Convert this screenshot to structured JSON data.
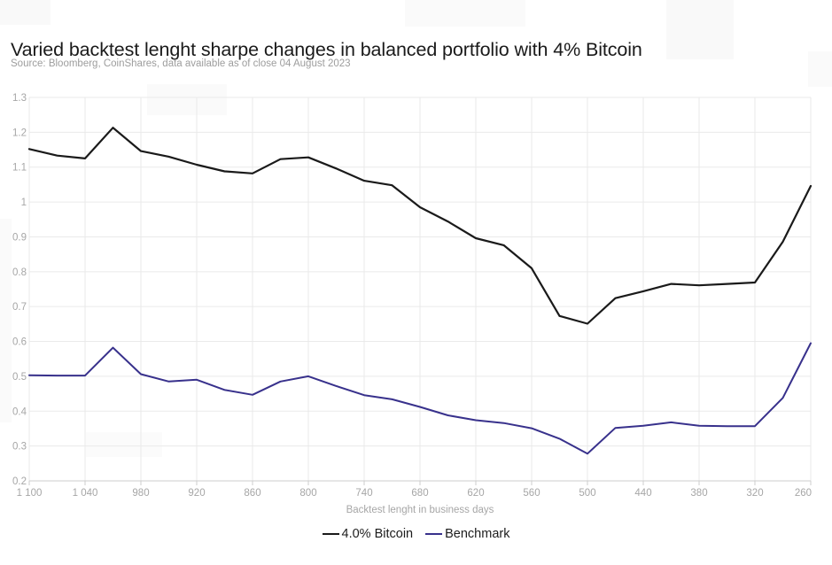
{
  "chart_data": {
    "type": "line",
    "title": "Varied backtest lenght sharpe changes in balanced portfolio with 4% Bitcoin",
    "subtitle": "Source: Bloomberg, CoinShares, data available as of close 04 August 2023",
    "xlabel": "Backtest lenght in business days",
    "ylabel": "",
    "xlim": [
      1100,
      260
    ],
    "ylim": [
      0.2,
      1.3
    ],
    "x_reversed": true,
    "grid": true,
    "grid_color": "#eaeaea",
    "axis_color": "#cccccc",
    "legend_position": "bottom-center",
    "x": [
      1100,
      1070,
      1040,
      1010,
      980,
      950,
      920,
      890,
      860,
      830,
      800,
      770,
      740,
      710,
      680,
      650,
      620,
      590,
      560,
      530,
      500,
      470,
      440,
      410,
      380,
      350,
      320,
      290,
      260
    ],
    "x_ticks": [
      {
        "value": 1100,
        "label": "1 100"
      },
      {
        "value": 1040,
        "label": "1 040"
      },
      {
        "value": 980,
        "label": "980"
      },
      {
        "value": 920,
        "label": "920"
      },
      {
        "value": 860,
        "label": "860"
      },
      {
        "value": 800,
        "label": "800"
      },
      {
        "value": 740,
        "label": "740"
      },
      {
        "value": 680,
        "label": "680"
      },
      {
        "value": 620,
        "label": "620"
      },
      {
        "value": 560,
        "label": "560"
      },
      {
        "value": 500,
        "label": "500"
      },
      {
        "value": 440,
        "label": "440"
      },
      {
        "value": 380,
        "label": "380"
      },
      {
        "value": 320,
        "label": "320"
      },
      {
        "value": 260,
        "label": "260"
      }
    ],
    "y_ticks": [
      {
        "value": 1.3,
        "label": "1.3"
      },
      {
        "value": 1.2,
        "label": "1.2"
      },
      {
        "value": 1.1,
        "label": "1.1"
      },
      {
        "value": 1.0,
        "label": "1"
      },
      {
        "value": 0.9,
        "label": "0.9"
      },
      {
        "value": 0.8,
        "label": "0.8"
      },
      {
        "value": 0.7,
        "label": "0.7"
      },
      {
        "value": 0.6,
        "label": "0.6"
      },
      {
        "value": 0.5,
        "label": "0.5"
      },
      {
        "value": 0.4,
        "label": "0.4"
      },
      {
        "value": 0.3,
        "label": "0.3"
      },
      {
        "value": 0.2,
        "label": "0.2"
      }
    ],
    "series": [
      {
        "name": "4.0% Bitcoin",
        "color": "#1a1a1a",
        "values": [
          1.152,
          1.133,
          1.125,
          1.213,
          1.146,
          1.13,
          1.107,
          1.088,
          1.082,
          1.123,
          1.128,
          1.096,
          1.061,
          1.048,
          0.985,
          0.944,
          0.896,
          0.876,
          0.81,
          0.673,
          0.651,
          0.724,
          0.744,
          0.765,
          0.761,
          0.765,
          0.769,
          0.886,
          1.046
        ]
      },
      {
        "name": "Benchmark",
        "color": "#38318c",
        "values": [
          0.503,
          0.502,
          0.502,
          0.582,
          0.506,
          0.485,
          0.49,
          0.461,
          0.447,
          0.485,
          0.5,
          0.472,
          0.446,
          0.434,
          0.412,
          0.388,
          0.374,
          0.366,
          0.351,
          0.321,
          0.278,
          0.352,
          0.358,
          0.368,
          0.358,
          0.357,
          0.357,
          0.438,
          0.595
        ]
      }
    ]
  }
}
